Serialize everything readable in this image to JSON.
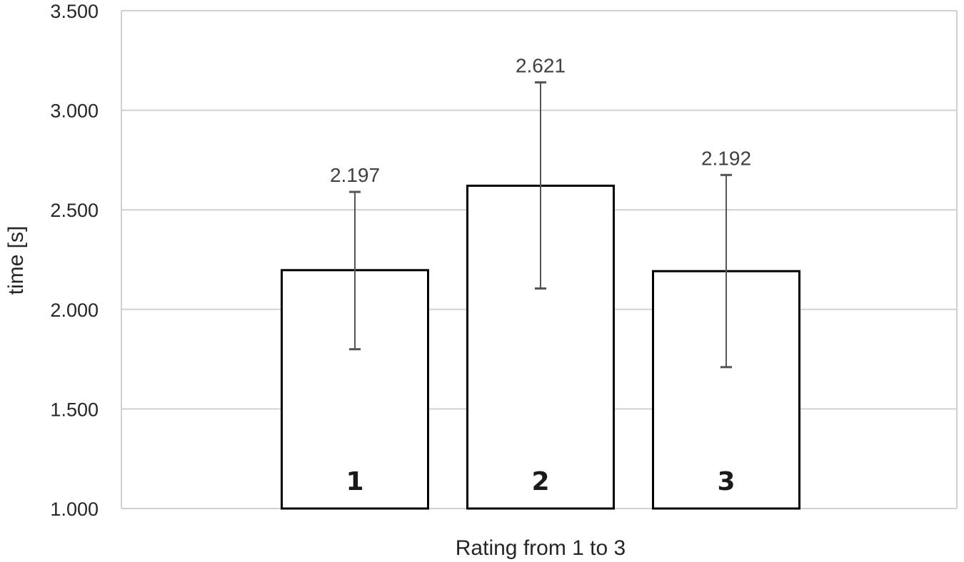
{
  "chart_data": {
    "type": "bar",
    "title": "",
    "xlabel": "Rating from 1 to 3",
    "ylabel": "time [s]",
    "ylim": [
      1.0,
      3.5
    ],
    "yticks": [
      1.0,
      1.5,
      2.0,
      2.5,
      3.0,
      3.5
    ],
    "ytick_labels": [
      "1.000",
      "1.500",
      "2.000",
      "2.500",
      "3.000",
      "3.500"
    ],
    "grid": true,
    "legend": "none",
    "categories": [
      "1",
      "2",
      "3"
    ],
    "values": [
      2.197,
      2.621,
      2.192
    ],
    "value_labels": [
      "2.197",
      "2.621",
      "2.192"
    ],
    "error_low": [
      1.8,
      2.105,
      1.71
    ],
    "error_high": [
      2.59,
      3.14,
      2.675
    ],
    "colors": {
      "bar_fill": "#ffffff",
      "bar_stroke": "#000000",
      "grid": "#d0d0d0",
      "error_bar": "#555555"
    }
  }
}
